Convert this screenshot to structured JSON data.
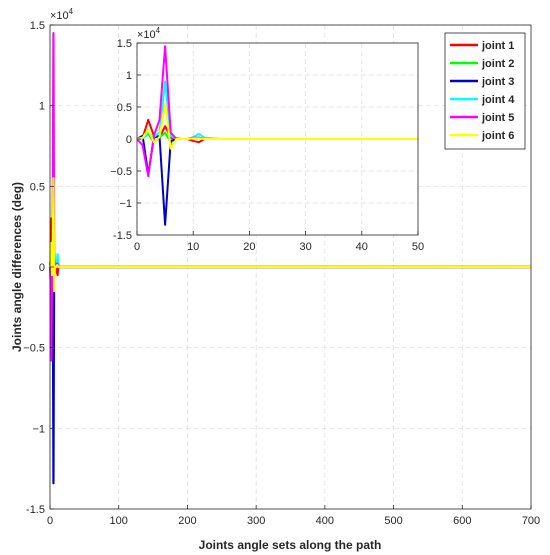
{
  "chart_data": [
    {
      "type": "line",
      "panel": "main",
      "xlabel": "Joints angle sets along the path",
      "ylabel": "Joints angle differences (deg)",
      "xlim": [
        0,
        700
      ],
      "ylim": [
        -1.5,
        1.5
      ],
      "xticks": [
        0,
        100,
        200,
        300,
        400,
        500,
        600,
        700
      ],
      "yticks": [
        -1.5,
        -1,
        -0.5,
        0,
        0.5,
        1,
        1.5
      ],
      "xtick_labels": [
        "0",
        "100",
        "200",
        "300",
        "400",
        "500",
        "600",
        "700"
      ],
      "ytick_labels": [
        "-1.5",
        "−1",
        "−0.5",
        "0",
        "0.5",
        "1",
        "1.5"
      ],
      "y_multiplier": "×10",
      "y_multiplier_exp": "4",
      "grid": true,
      "legend": "top-right",
      "series": [
        {
          "name": "joint 1",
          "color": "#ff0000",
          "x": [
            0,
            1,
            2,
            3,
            4,
            5,
            6,
            7,
            8,
            9,
            10,
            11,
            12,
            15,
            20,
            700
          ],
          "y": [
            0,
            0.02,
            0.3,
            0.05,
            0.02,
            0.2,
            0.02,
            0.01,
            0.0,
            0.0,
            -0.03,
            -0.05,
            0.0,
            0.0,
            0.0,
            0.0
          ]
        },
        {
          "name": "joint 2",
          "color": "#00ff00",
          "x": [
            0,
            1,
            2,
            3,
            4,
            5,
            6,
            7,
            8,
            9,
            10,
            11,
            12,
            15,
            20,
            700
          ],
          "y": [
            0,
            0.01,
            0.08,
            -0.05,
            0.02,
            0.1,
            -0.05,
            0.0,
            0.0,
            0.0,
            0.01,
            0.02,
            0.0,
            0.0,
            0.0,
            0.0
          ]
        },
        {
          "name": "joint 3",
          "color": "#0000cd",
          "x": [
            0,
            1,
            2,
            3,
            4,
            5,
            6,
            7,
            8,
            9,
            10,
            11,
            12,
            15,
            20,
            700
          ],
          "y": [
            0,
            0.05,
            -0.55,
            0.02,
            0.05,
            -1.34,
            -0.03,
            0.0,
            0.0,
            0.0,
            0.01,
            0.02,
            0.0,
            0.0,
            0.0,
            0.0
          ]
        },
        {
          "name": "joint 4",
          "color": "#00ffff",
          "x": [
            0,
            1,
            2,
            3,
            4,
            5,
            6,
            7,
            8,
            9,
            10,
            11,
            12,
            15,
            20,
            700
          ],
          "y": [
            0,
            0.01,
            0.1,
            0.03,
            0.1,
            0.9,
            0.05,
            0.0,
            0.0,
            0.0,
            0.03,
            0.08,
            0.02,
            0.0,
            0.0,
            0.0
          ]
        },
        {
          "name": "joint 5",
          "color": "#ff00ff",
          "x": [
            0,
            1,
            2,
            3,
            4,
            5,
            6,
            7,
            8,
            9,
            10,
            11,
            12,
            15,
            20,
            700
          ],
          "y": [
            0,
            -0.1,
            -0.58,
            0.05,
            0.3,
            1.45,
            0.1,
            0.0,
            0.0,
            0.0,
            0.02,
            0.02,
            0.0,
            0.0,
            0.0,
            0.0
          ]
        },
        {
          "name": "joint 6",
          "color": "#ffff00",
          "x": [
            0,
            1,
            2,
            3,
            4,
            5,
            6,
            7,
            8,
            9,
            10,
            11,
            12,
            15,
            20,
            700
          ],
          "y": [
            0,
            0.02,
            0.15,
            -0.05,
            0.03,
            0.55,
            -0.15,
            0.0,
            0.0,
            0.0,
            0.01,
            0.01,
            0.0,
            0.0,
            0.0,
            0.0
          ]
        }
      ]
    },
    {
      "type": "line",
      "panel": "inset",
      "xlim": [
        0,
        50
      ],
      "ylim": [
        -1.5,
        1.5
      ],
      "xticks": [
        0,
        10,
        20,
        30,
        40,
        50
      ],
      "yticks": [
        -1.5,
        -1,
        -0.5,
        0,
        0.5,
        1,
        1.5
      ],
      "xtick_labels": [
        "0",
        "10",
        "20",
        "30",
        "40",
        "50"
      ],
      "ytick_labels": [
        "-1.5",
        "−1",
        "−0.5",
        "0",
        "0.5",
        "1",
        "1.5"
      ],
      "y_multiplier": "×10",
      "y_multiplier_exp": "4",
      "grid": true,
      "series": [
        {
          "name": "joint 1",
          "color": "#ff0000",
          "x": [
            0,
            1,
            2,
            3,
            4,
            5,
            6,
            7,
            8,
            9,
            10,
            11,
            12,
            15,
            20,
            50
          ],
          "y": [
            0,
            0.02,
            0.3,
            0.05,
            0.02,
            0.2,
            0.02,
            0.01,
            0.0,
            0.0,
            -0.03,
            -0.05,
            0.0,
            0.0,
            0.0,
            0.0
          ]
        },
        {
          "name": "joint 2",
          "color": "#00ff00",
          "x": [
            0,
            1,
            2,
            3,
            4,
            5,
            6,
            7,
            8,
            9,
            10,
            11,
            12,
            15,
            20,
            50
          ],
          "y": [
            0,
            0.01,
            0.08,
            -0.05,
            0.02,
            0.1,
            -0.05,
            0.0,
            0.0,
            0.0,
            0.01,
            0.02,
            0.0,
            0.0,
            0.0,
            0.0
          ]
        },
        {
          "name": "joint 3",
          "color": "#0000cd",
          "x": [
            0,
            1,
            2,
            3,
            4,
            5,
            6,
            7,
            8,
            9,
            10,
            11,
            12,
            15,
            20,
            50
          ],
          "y": [
            0,
            0.05,
            -0.55,
            0.02,
            0.05,
            -1.34,
            -0.03,
            0.0,
            0.0,
            0.0,
            0.01,
            0.02,
            0.0,
            0.0,
            0.0,
            0.0
          ]
        },
        {
          "name": "joint 4",
          "color": "#00ffff",
          "x": [
            0,
            1,
            2,
            3,
            4,
            5,
            6,
            7,
            8,
            9,
            10,
            11,
            12,
            15,
            20,
            50
          ],
          "y": [
            0,
            0.01,
            0.1,
            0.03,
            0.1,
            0.9,
            0.05,
            0.0,
            0.0,
            0.0,
            0.03,
            0.08,
            0.02,
            0.0,
            0.0,
            0.0
          ]
        },
        {
          "name": "joint 5",
          "color": "#ff00ff",
          "x": [
            0,
            1,
            2,
            3,
            4,
            5,
            6,
            7,
            8,
            9,
            10,
            11,
            12,
            15,
            20,
            50
          ],
          "y": [
            0,
            -0.1,
            -0.58,
            0.05,
            0.3,
            1.45,
            0.1,
            0.0,
            0.0,
            0.0,
            0.02,
            0.02,
            0.0,
            0.0,
            0.0,
            0.0
          ]
        },
        {
          "name": "joint 6",
          "color": "#ffff00",
          "x": [
            0,
            1,
            2,
            3,
            4,
            5,
            6,
            7,
            8,
            9,
            10,
            11,
            12,
            15,
            20,
            50
          ],
          "y": [
            0,
            0.02,
            0.15,
            -0.05,
            0.03,
            0.55,
            -0.15,
            0.0,
            0.0,
            0.0,
            0.01,
            0.01,
            0.0,
            0.0,
            0.0,
            0.0
          ]
        }
      ]
    }
  ]
}
